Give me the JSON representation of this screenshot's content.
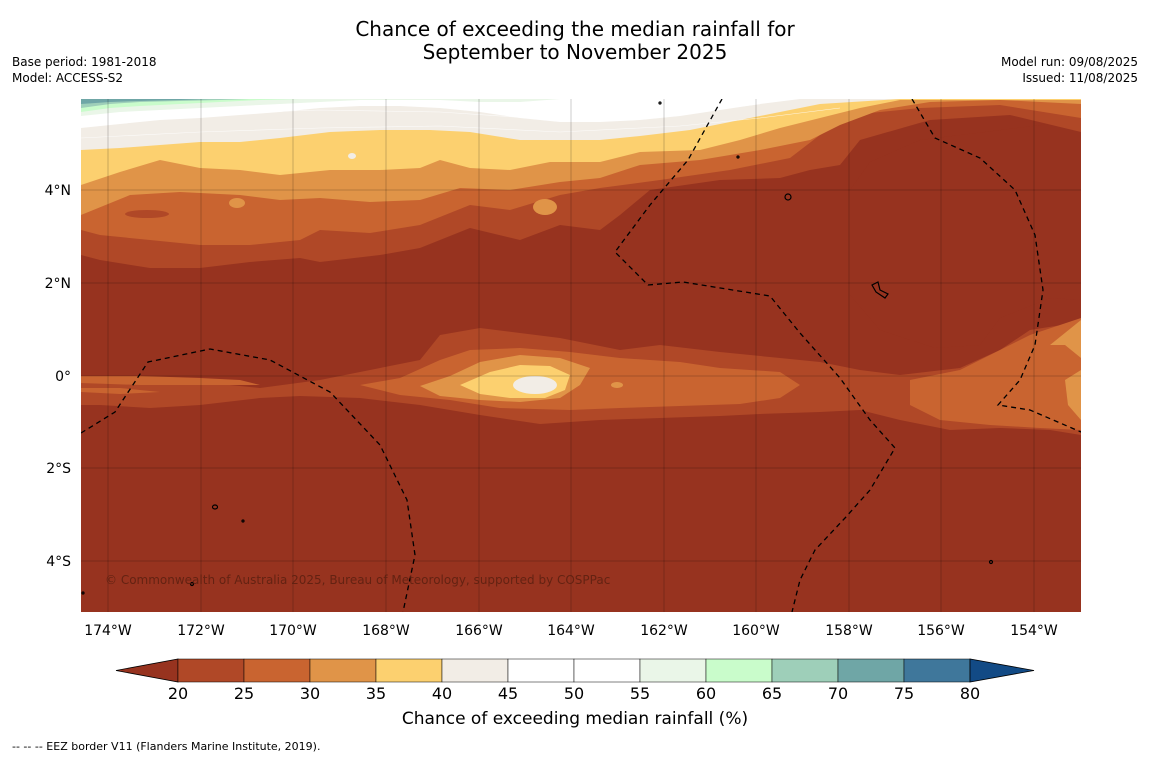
{
  "title_line1": "Chance of exceeding the median rainfall for",
  "title_line2": "September to November 2025",
  "base_period": "Base period: 1981-2018",
  "model": "Model: ACCESS-S2",
  "model_run": "Model run: 09/08/2025",
  "issued": "Issued: 11/08/2025",
  "copyright": "© Commonwealth of Australia 2025, Bureau of Meteorology, supported by COSPPac",
  "footer": "--  --  -- EEZ border V11 (Flanders Marine Institute, 2019).",
  "map": {
    "lat_labels": [
      "4°N",
      "2°N",
      "0°",
      "2°S",
      "4°S"
    ],
    "lon_labels": [
      "174°W",
      "172°W",
      "170°W",
      "168°W",
      "166°W",
      "164°W",
      "162°W",
      "160°W",
      "158°W",
      "156°W",
      "154°W"
    ]
  },
  "colorbar": {
    "title": "Chance of exceeding median rainfall (%)",
    "ticks": [
      "20",
      "25",
      "30",
      "35",
      "40",
      "45",
      "50",
      "55",
      "60",
      "65",
      "70",
      "75",
      "80"
    ],
    "colors": [
      "#97331f",
      "#b04827",
      "#c96430",
      "#e09448",
      "#fcd06f",
      "#f2ede6",
      "#ffffff",
      "#ffffff",
      "#eaf6e8",
      "#c9fccb",
      "#9ecfb9",
      "#6fa6a6",
      "#3f779b",
      "#124a85"
    ]
  }
}
